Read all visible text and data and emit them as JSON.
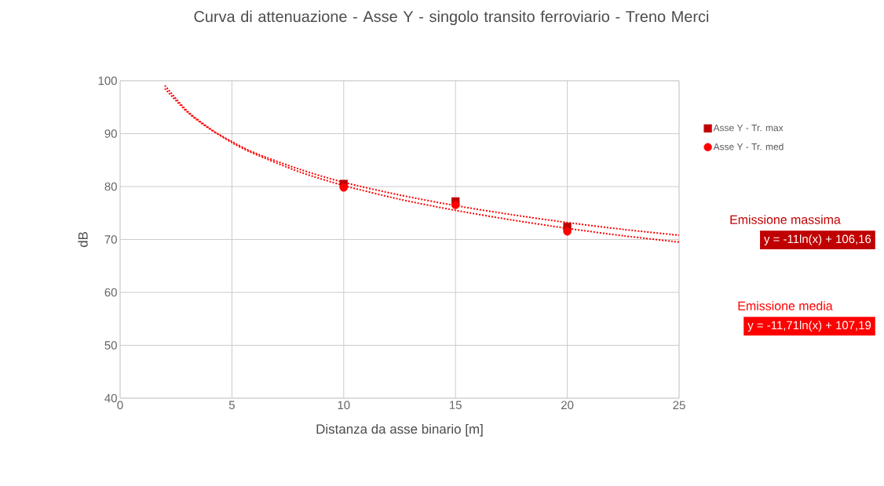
{
  "chart_data": {
    "type": "scatter",
    "title": "Curva di attenuazione - Asse Y - singolo transito ferroviario - Treno Merci",
    "xlabel": "Distanza da asse binario [m]",
    "ylabel": "dB",
    "xlim": [
      0,
      25
    ],
    "xticks": [
      0,
      5,
      10,
      15,
      20,
      25
    ],
    "ylim": [
      40,
      100
    ],
    "yticks": [
      40,
      50,
      60,
      70,
      80,
      90,
      100
    ],
    "grid": true,
    "legend": "right",
    "series": [
      {
        "name": "Asse Y - Tr. max",
        "color": "#c00000",
        "marker": "square",
        "x": [
          10,
          15,
          20
        ],
        "values": [
          80.5,
          77.2,
          72.4
        ]
      },
      {
        "name": "Asse Y - Tr. med",
        "color": "#ff0000",
        "marker": "circle",
        "x": [
          10,
          15,
          20
        ],
        "values": [
          79.8,
          76.5,
          71.5
        ]
      },
      {
        "type": "line",
        "color": "#ff0000",
        "line_style": "dotted",
        "marker": "none",
        "x": [
          2,
          3,
          4,
          5,
          6,
          8,
          10,
          12.5,
          15,
          17.5,
          20,
          22.5,
          25
        ],
        "values": [
          98.5,
          94.1,
          90.9,
          88.5,
          86.4,
          83.3,
          80.8,
          78.4,
          76.4,
          74.7,
          73.2,
          71.9,
          70.8
        ]
      },
      {
        "type": "line",
        "color": "#ff0000",
        "line_style": "dotted",
        "marker": "none",
        "x": [
          2,
          3,
          4,
          5,
          6,
          8,
          10,
          12.5,
          15,
          17.5,
          20,
          22.5,
          25
        ],
        "values": [
          99.1,
          94.3,
          91.0,
          88.3,
          86.2,
          82.8,
          80.2,
          77.6,
          75.5,
          73.7,
          72.1,
          70.7,
          69.5
        ]
      }
    ],
    "annotations": [
      "Emissione massima",
      "y = -11ln(x) + 106,16",
      "Emissione media",
      "y = -11,71ln(x) + 107,19"
    ]
  }
}
